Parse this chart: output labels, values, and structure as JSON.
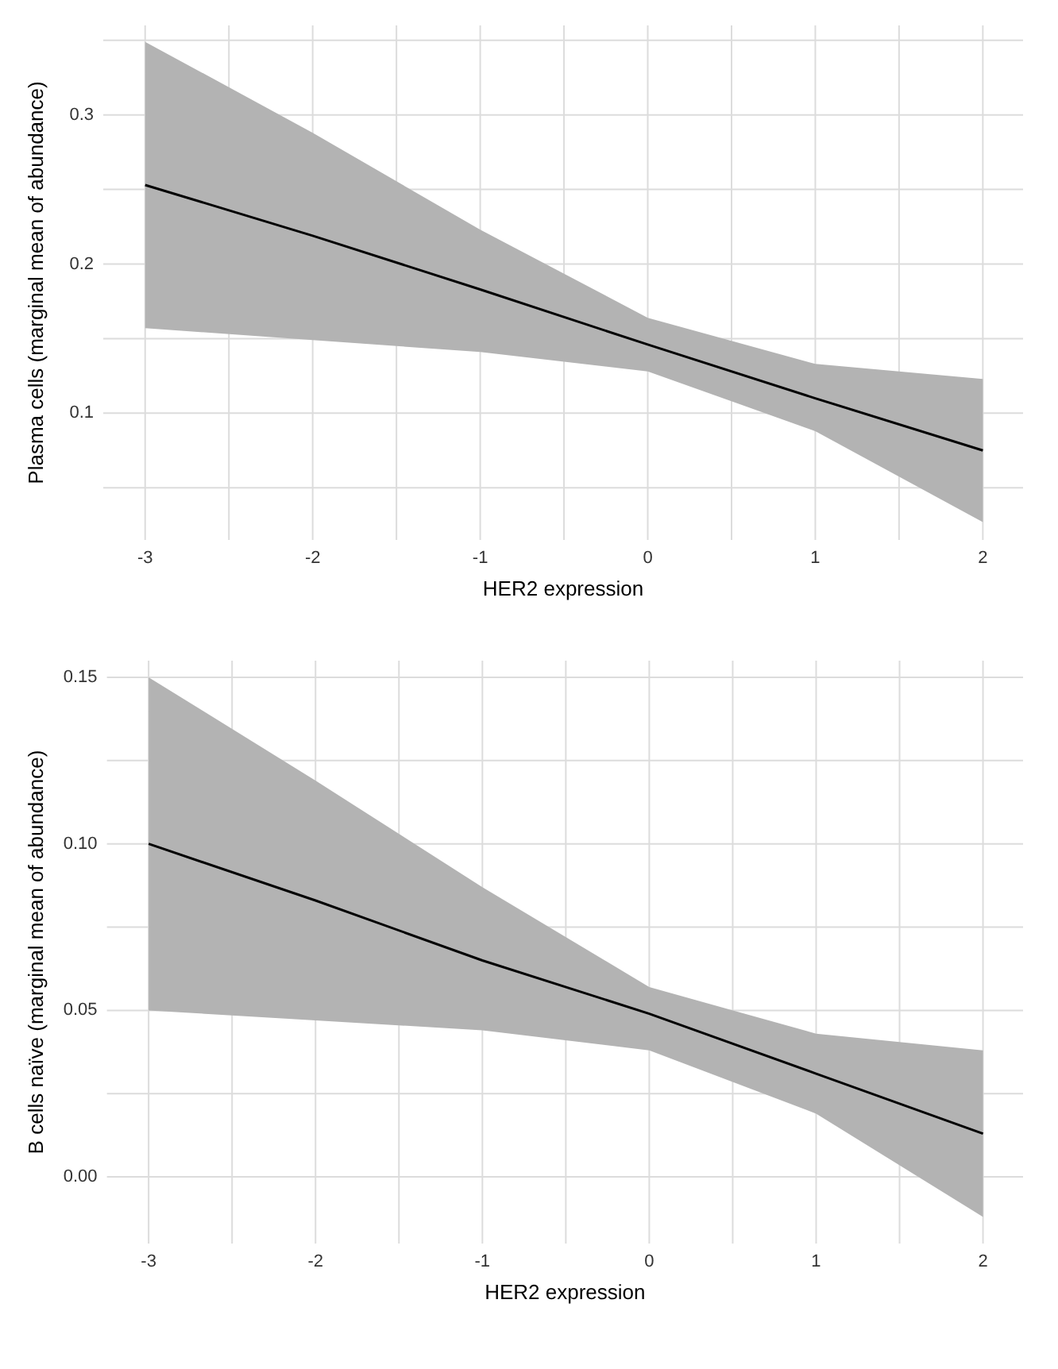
{
  "chart_data": [
    {
      "type": "line",
      "xlabel": "HER2 expression",
      "ylabel": "Plasma cells (marginal mean of abundance)",
      "x": [
        -3,
        -2,
        -1,
        0,
        1,
        2
      ],
      "series": [
        {
          "color": "#000000",
          "values": [
            0.253,
            0.219,
            0.183,
            0.146,
            0.11,
            0.075
          ],
          "lower": [
            0.157,
            0.149,
            0.141,
            0.128,
            0.088,
            0.027
          ],
          "upper": [
            0.349,
            0.288,
            0.223,
            0.164,
            0.133,
            0.123
          ]
        }
      ],
      "xlim": [
        -3.25,
        2.24
      ],
      "ylim": [
        0.015,
        0.36
      ],
      "xticks": [
        -3,
        -2,
        -1,
        0,
        1,
        2
      ],
      "yticks": [
        0.1,
        0.2,
        0.3
      ],
      "grid": true,
      "marker": "none",
      "line_style": "solid"
    },
    {
      "type": "line",
      "xlabel": "HER2 expression",
      "ylabel": "B cells naïve (marginal mean of abundance)",
      "x": [
        -3,
        -2,
        -1,
        0,
        1,
        2
      ],
      "series": [
        {
          "color": "#000000",
          "values": [
            0.1,
            0.083,
            0.065,
            0.049,
            0.031,
            0.013
          ],
          "lower": [
            0.05,
            0.047,
            0.044,
            0.038,
            0.019,
            -0.012
          ],
          "upper": [
            0.15,
            0.119,
            0.087,
            0.057,
            0.043,
            0.038
          ]
        }
      ],
      "xlim": [
        -3.25,
        2.24
      ],
      "ylim": [
        -0.02,
        0.155
      ],
      "xticks": [
        -3,
        -2,
        -1,
        0,
        1,
        2
      ],
      "yticks": [
        {
          "value": 0,
          "label": "0.00"
        },
        {
          "value": 0.05,
          "label": "0.05"
        },
        {
          "value": 0.1,
          "label": "0.10"
        },
        {
          "value": 0.15,
          "label": "0.15"
        }
      ],
      "grid": true,
      "marker": "none",
      "line_style": "solid"
    }
  ]
}
